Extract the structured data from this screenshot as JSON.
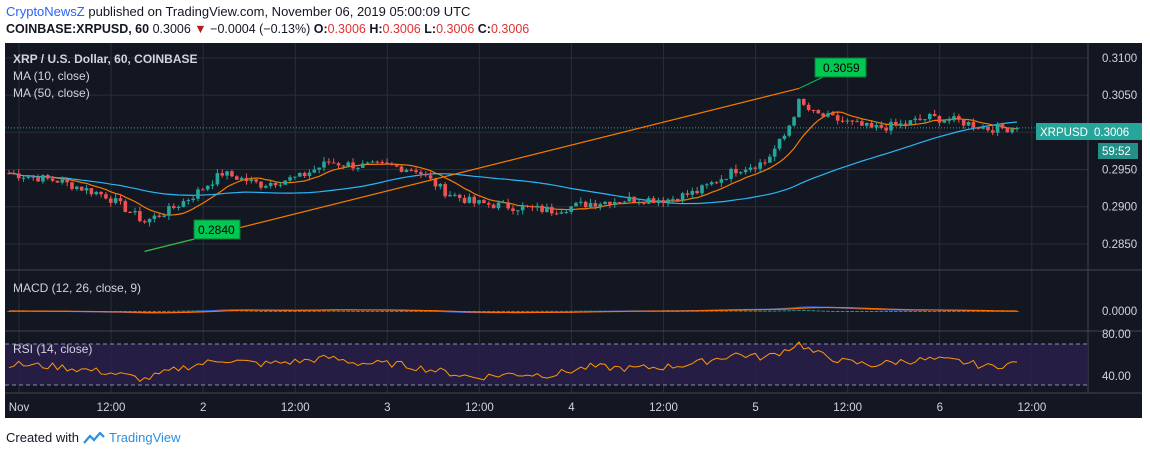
{
  "header": {
    "author": "CryptoNewsZ",
    "published": " published on TradingView.com, November 06, 2019 05:00:09 UTC",
    "symbol": "COINBASE:XRPUSD, 60",
    "last": "0.3006",
    "change": "−0.0004 (−0.13%)",
    "o_label": "O:",
    "o": "0.3006",
    "h_label": "H:",
    "h": "0.3006",
    "l_label": "L:",
    "l": "0.3006",
    "c_label": "C:",
    "c": "0.3006"
  },
  "legend": {
    "title": "XRP / U.S. Dollar, 60, COINBASE",
    "ma10": "MA (10, close)",
    "ma50": "MA (50, close)",
    "macd": "MACD (12, 26, close, 9)",
    "rsi": "RSI (14, close)"
  },
  "price_tag": {
    "symbol": "XRPUSD",
    "value": "0.3006",
    "countdown": "59:52"
  },
  "annotations": {
    "low": "0.2840",
    "high": "0.3059"
  },
  "footer": {
    "created_with": "Created with",
    "brand": "TradingView"
  },
  "colors": {
    "background": "#131722",
    "up": "#26a69a",
    "down": "#ef5350",
    "ma10": "#f57c00",
    "ma50": "#29b6f6",
    "macd": "#2962ff",
    "signal": "#ff6d00",
    "rsi": "#ff9800",
    "rsi_band": "#2a1f4a",
    "label_green": "#00c853",
    "last_price": "#26a69a"
  },
  "chart_data": [
    {
      "type": "candlestick",
      "title": "XRP / U.S. Dollar, 60, COINBASE",
      "x_ticks": [
        "Nov",
        "12:00",
        "2",
        "12:00",
        "3",
        "12:00",
        "4",
        "12:00",
        "5",
        "12:00",
        "6",
        "12:00"
      ],
      "y_ticks": [
        "0.3100",
        "0.3050",
        "0.3000",
        "0.2950",
        "0.2900",
        "0.2850"
      ],
      "ylim": [
        0.2815,
        0.312
      ],
      "grid": true,
      "last_price": 0.3006,
      "price_anchors": [
        [
          0,
          0.2945
        ],
        [
          10,
          0.2935
        ],
        [
          20,
          0.2915
        ],
        [
          28,
          0.288
        ],
        [
          33,
          0.2895
        ],
        [
          38,
          0.2915
        ],
        [
          44,
          0.2945
        ],
        [
          52,
          0.293
        ],
        [
          60,
          0.294
        ],
        [
          66,
          0.296
        ],
        [
          72,
          0.2955
        ],
        [
          78,
          0.2955
        ],
        [
          84,
          0.295
        ],
        [
          90,
          0.292
        ],
        [
          96,
          0.2905
        ],
        [
          104,
          0.29
        ],
        [
          112,
          0.2895
        ],
        [
          120,
          0.2905
        ],
        [
          128,
          0.291
        ],
        [
          136,
          0.291
        ],
        [
          142,
          0.292
        ],
        [
          150,
          0.295
        ],
        [
          156,
          0.296
        ],
        [
          160,
          0.2995
        ],
        [
          163,
          0.304
        ],
        [
          166,
          0.3025
        ],
        [
          172,
          0.3015
        ],
        [
          178,
          0.3005
        ],
        [
          184,
          0.301
        ],
        [
          190,
          0.302
        ],
        [
          196,
          0.3015
        ],
        [
          202,
          0.3005
        ],
        [
          208,
          0.3006
        ]
      ],
      "overlays": [
        "MA (10, close)",
        "MA (50, close)"
      ],
      "annotations": [
        {
          "label": "0.2840",
          "value": 0.284
        },
        {
          "label": "0.3059",
          "value": 0.3059
        }
      ]
    },
    {
      "type": "line",
      "title": "MACD (12, 26, close, 9)",
      "y_ticks": [
        "0.0000"
      ],
      "series": [
        "MACD",
        "signal",
        "histogram"
      ],
      "note_style": "histogram bars up/down"
    },
    {
      "type": "line",
      "title": "RSI (14, close)",
      "y_ticks": [
        "80.00",
        "40.00"
      ],
      "band": [
        70,
        30
      ],
      "rsi_anchors": [
        [
          0,
          55
        ],
        [
          10,
          52
        ],
        [
          20,
          46
        ],
        [
          28,
          38
        ],
        [
          35,
          50
        ],
        [
          44,
          60
        ],
        [
          52,
          55
        ],
        [
          60,
          58
        ],
        [
          66,
          62
        ],
        [
          72,
          56
        ],
        [
          80,
          55
        ],
        [
          90,
          46
        ],
        [
          96,
          40
        ],
        [
          104,
          44
        ],
        [
          112,
          43
        ],
        [
          120,
          52
        ],
        [
          128,
          50
        ],
        [
          136,
          52
        ],
        [
          142,
          56
        ],
        [
          150,
          66
        ],
        [
          156,
          62
        ],
        [
          160,
          70
        ],
        [
          163,
          78
        ],
        [
          166,
          68
        ],
        [
          172,
          58
        ],
        [
          178,
          54
        ],
        [
          184,
          58
        ],
        [
          190,
          60
        ],
        [
          196,
          58
        ],
        [
          202,
          52
        ],
        [
          208,
          56
        ]
      ]
    }
  ]
}
